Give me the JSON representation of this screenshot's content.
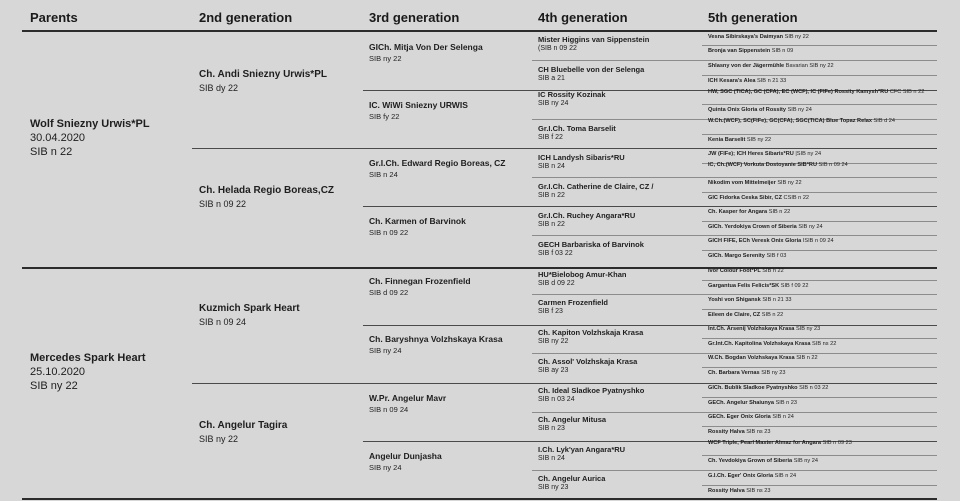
{
  "headers": [
    "Parents",
    "2nd generation",
    "3rd generation",
    "4th generation",
    "5th generation"
  ],
  "gen1": [
    {
      "name": "Wolf Sniezny Urwis*PL",
      "info": [
        "30.04.2020",
        "SIB n 22"
      ]
    },
    {
      "name": "Mercedes Spark Heart",
      "info": [
        "25.10.2020",
        " SIB ny 22"
      ]
    }
  ],
  "gen2": [
    {
      "name": "Ch. Andi Sniezny Urwis*PL",
      "info": "SIB dy 22"
    },
    {
      "name": "Ch. Helada Regio Boreas,CZ",
      "info": "SIB n 09 22"
    },
    {
      "name": "Kuzmich Spark Heart",
      "info": "SIB n 09 24"
    },
    {
      "name": "Ch. Angelur Tagira",
      "info": " SIB ny 22"
    }
  ],
  "gen3": [
    {
      "name": "GICh. Mitja Von Der Selenga",
      "info": "SIB ny 22"
    },
    {
      "name": "IC. WiWi Sniezny URWIS",
      "info": "SIB fy 22"
    },
    {
      "name": "Gr.I.Ch. Edward Regio Boreas, CZ",
      "info": "SIB n 24"
    },
    {
      "name": "Ch.  Karmen  of  Barvinok",
      "info": "SIB n 09 22"
    },
    {
      "name": "Ch. Finnegan Frozenfield",
      "info": "SIB d 09 22"
    },
    {
      "name": "Ch. Baryshnya Volzhskaya Krasa",
      "info": "SIB ny 24"
    },
    {
      "name": "W.Pr. Angelur Mavr",
      "info": " SIB n 09 24"
    },
    {
      "name": "Angelur Dunjasha",
      "info": " SIB ny 24"
    }
  ],
  "gen4": [
    {
      "name": "Mister Higgins van Sippenstein",
      "info": "(SIB n 09 22"
    },
    {
      "name": "CH Bluebelle von der Selenga",
      "info": "SIB a 21"
    },
    {
      "name": "IC Rossity Kozinak",
      "info": "SIB ny 24"
    },
    {
      "name": "Gr.I.Ch. Toma Barselit",
      "info": "SIB f 22"
    },
    {
      "name": "ICH Landysh Sibaris*RU",
      "info": "SIB n 24"
    },
    {
      "name": "Gr.I.Ch. Catherine de Claire, CZ /",
      "info": "SIB n 22"
    },
    {
      "name": "Gr.I.Ch. Ruchey Angara*RU",
      "info": "SIB n 22"
    },
    {
      "name": "GECH Barbariska of Barvinok",
      "info": "SIB f 03 22"
    },
    {
      "name": "HU*Bielobog Amur-Khan",
      "info": "SIB d 09 22"
    },
    {
      "name": "Carmen Frozenfield",
      "info": "SIB f 23"
    },
    {
      "name": "Ch. Kapiton Volzhskaja Krasa",
      "info": "SIB ny 22"
    },
    {
      "name": "Ch. Assol' Volzhskaja Krasa",
      "info": "SIB ay 23"
    },
    {
      "name": "Ch. Ideal Sladkoe Pyatnyshko",
      "info": "SIB n 03 24"
    },
    {
      "name": "Ch. Angelur Mitusa",
      "info": "SIB n 23"
    },
    {
      "name": "I.Ch. Lyk'yan Angara*RU",
      "info": "SIB n 24"
    },
    {
      "name": "Ch. Angelur Aurica",
      "info": "SIB ny 23"
    }
  ],
  "gen5": [
    {
      "name": "Vesna Sibirskaya's Daimyan",
      "info": "SIB ny 22"
    },
    {
      "name": "Bronja van Sippenstein",
      "info": "SIB n 09"
    },
    {
      "name": "Shlasny von der Jägermühle",
      "info": "Bavarian SIB ny 22"
    },
    {
      "name": "ICH Kesara's Alea",
      "info": "SIB n 21 33"
    },
    {
      "name": "HW, SGC (TICA), GC (CFA), EC (WCF), IC (FIFe) Rossity Kamysh*RU",
      "info": "CFC SIB n 22"
    },
    {
      "name": "Quinta Onix Gloria of Rossity",
      "info": "SIB ny 24"
    },
    {
      "name": "W.Ch.(WCF), SC(FIFe), GC(CFA), SGC(TICA) Blue Topaz Relax",
      "info": "SIB d 24"
    },
    {
      "name": "Kenia Barselit",
      "info": "SIB ny 22"
    },
    {
      "name": "JW (FIFe); ICH Heres Sibaris*RU",
      "info": "|SIB ny 24"
    },
    {
      "name": "IC, Ch.(WCF) Vorkuta Dostoyanie SIB*RU",
      "info": "SIB n 09 24"
    },
    {
      "name": "Nikodim vom Mittelmeijer",
      "info": "SIB ny 22"
    },
    {
      "name": "GIC Fidorka Ceska Sibir, CZ",
      "info": "CSIB n 22"
    },
    {
      "name": "Ch. Kasper for Angara",
      "info": "SIB n 22"
    },
    {
      "name": "GICh. Yerdokiya Crown of Siberia",
      "info": "SIB ny 24"
    },
    {
      "name": "GICH FIFE, ECh Veresk Onix Gloria",
      "info": "ISIB n 09 24"
    },
    {
      "name": "GICh. Margo Serenity",
      "info": "SIB f 03"
    },
    {
      "name": "Ivor Colour Foot*PL",
      "info": "SIB n 22"
    },
    {
      "name": "Gargantua Felis Felicis*SK",
      "info": "SIB f 09 22"
    },
    {
      "name": "Yoshi von Shigansk",
      "info": "SIB n 21 33"
    },
    {
      "name": "Eileen de Claire, CZ",
      "info": "SIB n 22"
    },
    {
      "name": "Int.Ch. Arsenij Volzhskaya Krasa",
      "info": "SIB ny 23"
    },
    {
      "name": "Gr.Int.Ch. Kapitolina Volzhskaya Krasa",
      "info": "SIB ns 22"
    },
    {
      "name": "W.Ch. Bogdan Volzhskaya Krasa",
      "info": "SIB n 22"
    },
    {
      "name": "Ch. Barbara Vernas",
      "info": "SIB ny 23"
    },
    {
      "name": "GICh. Bublik Sladkoe Pyatnyshko",
      "info": "SIB n 03 22"
    },
    {
      "name": "GECh. Angelur Shaiunya",
      "info": "SIB n 23"
    },
    {
      "name": "GECh. Eger Onix Gloria",
      "info": "SIB n 24"
    },
    {
      "name": "Rossity Halva",
      "info": "SIB ns 23"
    },
    {
      "name": "WCF Triple, Pearl Master Almaz for Angara",
      "info": "SIB n 09 23"
    },
    {
      "name": "Ch. Yevdokiya Grown of Siberia",
      "info": "SIB ny 24"
    },
    {
      "name": "G.I.Ch. Eger' Onix Gloria",
      "info": "SIB n 24"
    },
    {
      "name": "Rossity Halva",
      "info": "SIB ns 23"
    }
  ]
}
